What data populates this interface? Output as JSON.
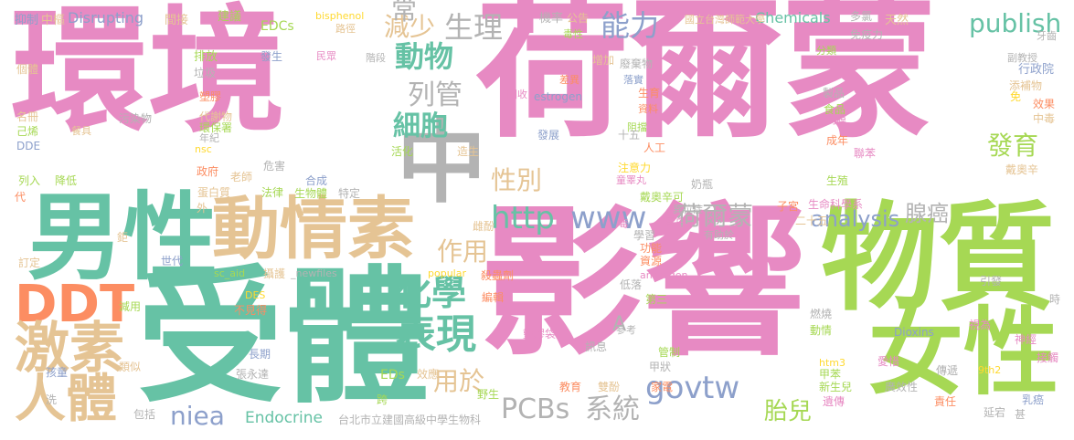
{
  "colors": {
    "pink": "#e78ac3",
    "green": "#66c2a5",
    "lime": "#a6d854",
    "tan": "#e5c494",
    "gray": "#b3b3b3",
    "blue": "#8da0cb",
    "orange": "#fc8d62",
    "yellow": "#ffd92f"
  },
  "words": {
    "w1": "環境",
    "w2": "荷爾蒙",
    "w3": "影響",
    "w4": "受體",
    "w5": "物質",
    "w6": "男性",
    "w7": "女性",
    "w8": "動情素",
    "w9": "中",
    "w10": "DDT",
    "w11": "激素",
    "w12": "人體",
    "w13": "表現",
    "w14": "化學",
    "w15": "細胞",
    "w16": "動物",
    "w17": "列管",
    "w18": "生理",
    "w19": "減少",
    "w20": "能力",
    "w21": "publish",
    "w22": "http",
    "w23": "www",
    "w24": "荷爾蒙",
    "w25": "性別",
    "w26": "作用",
    "w27": "用於",
    "w28": "gov",
    "w29": "tw",
    "w30": "PCBs",
    "w31": "系統",
    "w32": "胎兒",
    "w33": "niea",
    "w34": "analysis",
    "w35": "發育",
    "w36": "腺癌",
    "w37": "Endocrine",
    "w38": "台北市立建國高級中學生物科",
    "w39": "A",
    "w40": "常",
    "w41": "Chemicals",
    "w42": "國立台灣師範大學",
    "w43": "抑制",
    "w44": "中樞",
    "w45": "Disrupting",
    "w46": "間接",
    "w47": "建議",
    "w48": "bisphenol",
    "w49": "機率",
    "w50": "公告",
    "w51": "多氯",
    "w52": "天然",
    "w53": "免疫力",
    "w54": "牙齒",
    "w55": "EDCs",
    "w56": "路徑",
    "w57": "毒性",
    "w58": "增加",
    "w59": "廢棄物",
    "w60": "分類",
    "w61": "行政院",
    "w62": "副教授",
    "w63": "添補物",
    "w64": "個體",
    "w65": "排放",
    "w66": "垃圾",
    "w67": "發生",
    "w68": "民眾",
    "w69": "階段",
    "w70": "差異",
    "w71": "落實",
    "w72": "生育",
    "w73": "回收",
    "w74": "estrogen",
    "w75": "資料",
    "w76": "製品",
    "w77": "食品",
    "w78": "內膜",
    "w79": "效果",
    "w80": "中毒",
    "w81": "名冊",
    "w82": "己烯",
    "w83": "DDE",
    "w84": "塑膠",
    "w85": "污染物",
    "w86": "代謝物",
    "w87": "環保署",
    "w88": "年紀",
    "w89": "阻擋",
    "w90": "十五",
    "w91": "人工",
    "w92": "聯苯",
    "w93": "成年",
    "w94": "免",
    "w95": "餐具",
    "w96": "發展",
    "w97": "活化",
    "w98": "造生",
    "w99": "nsc",
    "w100": "注意力",
    "w101": "童睪丸",
    "w102": "生殖",
    "w103": "戴奧辛",
    "w104": "列入",
    "w105": "降低",
    "w106": "政府",
    "w107": "老師",
    "w108": "危害",
    "w109": "合成",
    "w110": "奶瓶",
    "w111": "戴奧辛可",
    "w112": "異位症",
    "w113": "生命科學系",
    "w114": "子宮",
    "w115": "代",
    "w116": "蛋白質",
    "w117": "法律",
    "w118": "生物體",
    "w119": "特定",
    "w120": "蛋白",
    "w121": "二十五",
    "w122": "外",
    "w123": "毒",
    "w124": "學習",
    "w125": "有助於",
    "w126": "鉅",
    "w127": "世代",
    "w128": "雌酚",
    "w129": "功能",
    "w130": "資源",
    "w131": "訂定",
    "w132": "sc_aid",
    "w133": "攝護",
    "w134": "_newfiles",
    "w135": "popular",
    "w136": "殺蟲劑",
    "w137": "androgen",
    "w138": "引發",
    "w139": "時",
    "w140": "DES",
    "w141": "編輯",
    "w142": "低落",
    "w143": "第三",
    "w144": "減用",
    "w145": "不見得",
    "w146": "參考",
    "w147": "燃燒",
    "w148": "神經",
    "w149": "長期",
    "w150": "訊息",
    "w151": "塑膠袋",
    "w152": "動情",
    "w153": "Dioxins",
    "w154": "視為",
    "w155": "類似",
    "w156": "管制",
    "w157": "愛惜",
    "w158": "張永達",
    "w159": "甲狀",
    "w160": "htm3",
    "w161": "孩童",
    "w162": "EDs",
    "w163": "效應",
    "w164": "甲苯",
    "w165": "9th2",
    "w166": "傳遞",
    "w167": "接觸",
    "w168": "教育",
    "w169": "雙酚",
    "w170": "洗",
    "w171": "跨",
    "w172": "野生",
    "w173": "家電",
    "w174": "新生兒",
    "w175": "廣效性",
    "w176": "遺傳",
    "w177": "責任",
    "w178": "乳癌",
    "w179": "包括",
    "w180": "延宕",
    "w181": "甚"
  }
}
